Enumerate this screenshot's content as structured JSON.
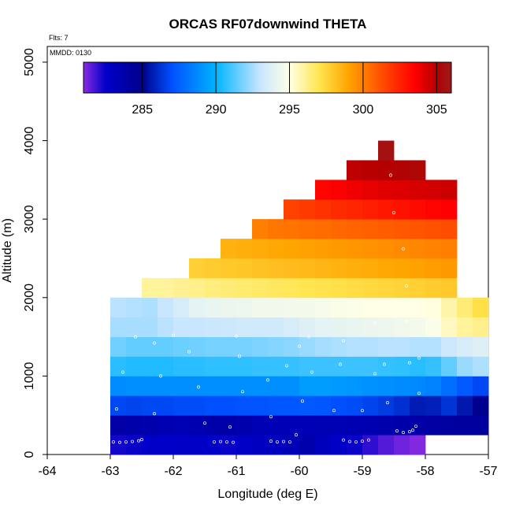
{
  "chart_data": {
    "type": "heatmap",
    "title": "ORCAS RF07downwind THETA",
    "flights_label": "Flts: 7",
    "date_label": "MMDD: 0130",
    "xlabel": "Longitude (deg E)",
    "ylabel": "Altitude (m)",
    "xlim": [
      -64,
      -57
    ],
    "ylim": [
      0,
      5200
    ],
    "xticks": [
      -64,
      -63,
      -62,
      -61,
      -60,
      -59,
      -58,
      -57
    ],
    "xtick_labels": [
      "-64",
      "-63",
      "-62",
      "-61",
      "-60",
      "-59",
      "-58",
      "-57"
    ],
    "yticks": [
      0,
      1000,
      2000,
      3000,
      4000,
      5000
    ],
    "ytick_labels": [
      "0",
      "1000",
      "2000",
      "3000",
      "4000",
      "5000"
    ],
    "cell_width_deg": 0.25,
    "cell_height_m": 250,
    "colorbar": {
      "range": [
        281,
        306
      ],
      "ticks": [
        285,
        290,
        295,
        300,
        305
      ],
      "tick_labels": [
        "285",
        "290",
        "295",
        "300",
        "305"
      ],
      "stops": [
        {
          "v": 281,
          "c": "#8a2be2"
        },
        {
          "v": 282.5,
          "c": "#0000c8"
        },
        {
          "v": 285,
          "c": "#00008b"
        },
        {
          "v": 287,
          "c": "#0050ff"
        },
        {
          "v": 290,
          "c": "#00b4ff"
        },
        {
          "v": 293,
          "c": "#c8e6ff"
        },
        {
          "v": 295,
          "c": "#ffffe6"
        },
        {
          "v": 297,
          "c": "#ffe650"
        },
        {
          "v": 299,
          "c": "#ffa500"
        },
        {
          "v": 302,
          "c": "#ff3200"
        },
        {
          "v": 303.5,
          "c": "#ff0000"
        },
        {
          "v": 305,
          "c": "#b40000"
        },
        {
          "v": 306,
          "c": "#9b1c1c"
        }
      ]
    },
    "rows": [
      {
        "alt": 0,
        "lon_start": -63.0,
        "values": [
          282.3,
          282.4,
          282.5,
          282.5,
          282.6,
          282.6,
          282.5,
          282.4,
          282.6,
          282.8,
          282.9,
          283.2,
          283.6,
          283.0,
          282.6,
          282.4,
          282.0,
          281.6,
          281.3,
          281.1
        ]
      },
      {
        "alt": 250,
        "lon_start": -63.0,
        "values": [
          283.9,
          283.7,
          283.6,
          283.4,
          283.3,
          283.5,
          283.7,
          283.8,
          283.6,
          283.3,
          283.2,
          283.1,
          283.2,
          283.3,
          283.3,
          283.4,
          283.5,
          283.6,
          283.8,
          283.9,
          284.0,
          284.1,
          284.2,
          284.2
        ]
      },
      {
        "alt": 500,
        "lon_start": -63.0,
        "values": [
          286.8,
          286.7,
          286.8,
          286.8,
          286.9,
          286.9,
          287.0,
          287.0,
          287.1,
          287.1,
          287.2,
          287.2,
          287.3,
          287.2,
          287.0,
          286.9,
          286.7,
          286.5,
          286.2,
          285.7,
          285.8,
          286.3,
          285.6,
          284.8
        ]
      },
      {
        "alt": 750,
        "lon_start": -63.0,
        "values": [
          288.8,
          288.9,
          288.9,
          288.9,
          288.9,
          288.9,
          288.9,
          288.9,
          288.9,
          288.9,
          288.9,
          288.9,
          289.3,
          289.3,
          289.2,
          289.1,
          289.0,
          288.9,
          288.8,
          288.7,
          288.5,
          287.9,
          287.3,
          286.8
        ]
      },
      {
        "alt": 1000,
        "lon_start": -63.0,
        "values": [
          290.6,
          290.5,
          290.5,
          290.5,
          290.6,
          290.6,
          290.7,
          290.7,
          290.7,
          290.8,
          290.8,
          290.8,
          290.9,
          290.9,
          290.9,
          290.9,
          290.9,
          290.8,
          290.7,
          290.6,
          290.8,
          291.5,
          292.3,
          292.6
        ]
      },
      {
        "alt": 1250,
        "lon_start": -63.0,
        "values": [
          291.7,
          291.5,
          291.5,
          291.5,
          291.6,
          291.7,
          291.8,
          291.8,
          291.8,
          291.9,
          292.0,
          292.1,
          292.3,
          292.5,
          292.6,
          292.7,
          292.7,
          292.8,
          292.8,
          292.7,
          292.7,
          293.2,
          293.5,
          293.8
        ]
      },
      {
        "alt": 1500,
        "lon_start": -63.0,
        "values": [
          292.5,
          292.5,
          292.5,
          292.8,
          293.0,
          293.0,
          293.1,
          293.2,
          293.3,
          293.3,
          293.3,
          293.5,
          293.8,
          294.0,
          294.1,
          294.2,
          294.3,
          294.4,
          294.5,
          294.6,
          294.8,
          295.5,
          296.0,
          296.2
        ]
      },
      {
        "alt": 1750,
        "lon_start": -63.0,
        "values": [
          292.8,
          292.7,
          292.6,
          293.0,
          293.5,
          294.0,
          294.2,
          294.3,
          294.4,
          294.5,
          294.5,
          294.6,
          294.6,
          294.7,
          294.8,
          294.9,
          295.0,
          295.0,
          295.0,
          295.0,
          295.1,
          295.8,
          296.5,
          297.2
        ]
      },
      {
        "alt": 2000,
        "lon_start": -62.5,
        "values": [
          296.0,
          296.0,
          296.1,
          296.2,
          296.4,
          296.5,
          296.6,
          296.7,
          296.8,
          296.9,
          297.0,
          297.1,
          297.2,
          297.3,
          297.4,
          297.5,
          297.6,
          297.7,
          297.8,
          297.9
        ]
      },
      {
        "alt": 2250,
        "lon_start": -61.75,
        "values": [
          297.7,
          297.8,
          297.9,
          298.0,
          298.1,
          298.2,
          298.3,
          298.4,
          298.5,
          298.6,
          298.7,
          298.8,
          298.9,
          299.0,
          299.1,
          299.2,
          299.3
        ]
      },
      {
        "alt": 2500,
        "lon_start": -61.25,
        "values": [
          298.6,
          298.7,
          298.8,
          298.9,
          299.0,
          299.1,
          299.2,
          299.3,
          299.4,
          299.5,
          299.6,
          299.7,
          299.8,
          299.9,
          300.0
        ]
      },
      {
        "alt": 2750,
        "lon_start": -60.75,
        "values": [
          300.0,
          300.2,
          300.3,
          300.4,
          300.5,
          300.6,
          300.7,
          300.8,
          300.9,
          301.0,
          301.1,
          301.2,
          301.3
        ]
      },
      {
        "alt": 3000,
        "lon_start": -60.25,
        "values": [
          301.6,
          301.8,
          302.0,
          302.2,
          302.4,
          302.6,
          302.8,
          303.0,
          303.2,
          303.4,
          303.5
        ]
      },
      {
        "alt": 3250,
        "lon_start": -59.75,
        "values": [
          303.4,
          303.6,
          303.8,
          304.0,
          304.1,
          304.2,
          304.3,
          304.4,
          304.5
        ]
      },
      {
        "alt": 3500,
        "lon_start": -59.25,
        "values": [
          304.8,
          304.9,
          305.0,
          305.1,
          305.2
        ]
      },
      {
        "alt": 3750,
        "lon_start": -58.75,
        "values": [
          305.6
        ]
      }
    ],
    "sample_points": [
      [
        -62.95,
        160
      ],
      [
        -62.85,
        155
      ],
      [
        -62.75,
        160
      ],
      [
        -62.65,
        165
      ],
      [
        -62.55,
        175
      ],
      [
        -62.5,
        190
      ],
      [
        -61.35,
        160
      ],
      [
        -61.25,
        165
      ],
      [
        -61.15,
        160
      ],
      [
        -61.05,
        155
      ],
      [
        -60.45,
        170
      ],
      [
        -60.35,
        160
      ],
      [
        -60.25,
        165
      ],
      [
        -60.15,
        160
      ],
      [
        -59.3,
        185
      ],
      [
        -59.2,
        165
      ],
      [
        -59.1,
        160
      ],
      [
        -59.0,
        170
      ],
      [
        -58.9,
        185
      ],
      [
        -58.45,
        300
      ],
      [
        -58.35,
        280
      ],
      [
        -58.25,
        290
      ],
      [
        -58.2,
        310
      ],
      [
        -58.15,
        360
      ],
      [
        -63.05,
        230
      ],
      [
        -62.9,
        580
      ],
      [
        -62.3,
        520
      ],
      [
        -61.5,
        400
      ],
      [
        -61.1,
        350
      ],
      [
        -60.05,
        250
      ],
      [
        -60.45,
        480
      ],
      [
        -59.95,
        680
      ],
      [
        -59.45,
        560
      ],
      [
        -59.0,
        560
      ],
      [
        -58.6,
        660
      ],
      [
        -58.1,
        780
      ],
      [
        -62.8,
        1050
      ],
      [
        -62.2,
        1000
      ],
      [
        -61.6,
        860
      ],
      [
        -60.9,
        800
      ],
      [
        -60.5,
        950
      ],
      [
        -60.2,
        1130
      ],
      [
        -59.8,
        1050
      ],
      [
        -59.35,
        1150
      ],
      [
        -58.8,
        1030
      ],
      [
        -58.65,
        1150
      ],
      [
        -58.25,
        1170
      ],
      [
        -58.1,
        1230
      ],
      [
        -62.6,
        1500
      ],
      [
        -62.3,
        1420
      ],
      [
        -62.0,
        1520
      ],
      [
        -61.75,
        1310
      ],
      [
        -61.0,
        1510
      ],
      [
        -60.95,
        1250
      ],
      [
        -60.0,
        1380
      ],
      [
        -59.85,
        1500
      ],
      [
        -59.3,
        1450
      ],
      [
        -58.8,
        1680
      ],
      [
        -58.3,
        1700
      ],
      [
        -58.3,
        2150
      ],
      [
        -58.35,
        2620
      ],
      [
        -58.5,
        3080
      ],
      [
        -58.55,
        3560
      ]
    ]
  }
}
